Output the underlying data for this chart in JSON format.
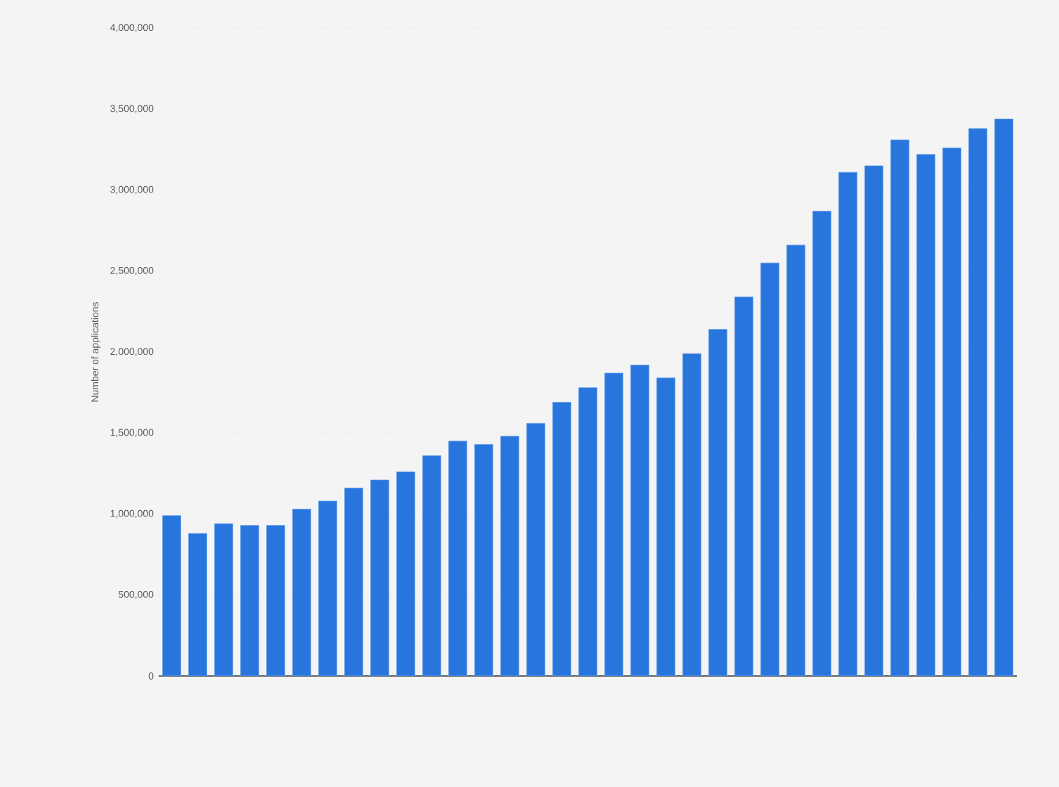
{
  "chart_data": {
    "type": "bar",
    "ylabel": "Number of applications",
    "categories": [
      null,
      null,
      null,
      null,
      null,
      null,
      null,
      null,
      null,
      null,
      null,
      null,
      null,
      null,
      null,
      null,
      null,
      null,
      null,
      null,
      null,
      null,
      null,
      null,
      null,
      null,
      null,
      null,
      null,
      null,
      null,
      null,
      null
    ],
    "values": [
      990000,
      880000,
      940000,
      930000,
      930000,
      1030000,
      1080000,
      1160000,
      1210000,
      1260000,
      1360000,
      1450000,
      1430000,
      1480000,
      1560000,
      1690000,
      1780000,
      1870000,
      1920000,
      1840000,
      1990000,
      2140000,
      2340000,
      2550000,
      2660000,
      2870000,
      3110000,
      3150000,
      3310000,
      3220000,
      3260000,
      3380000,
      3440000
    ],
    "color": "#2876dd",
    "ylim": [
      0,
      4000000
    ],
    "yticks": [
      {
        "value": 0,
        "label": "0"
      },
      {
        "value": 500000,
        "label": "500,000"
      },
      {
        "value": 1000000,
        "label": "1,000,000"
      },
      {
        "value": 1500000,
        "label": "1,500,000"
      },
      {
        "value": 2000000,
        "label": "2,000,000"
      },
      {
        "value": 2500000,
        "label": "2,500,000"
      },
      {
        "value": 3000000,
        "label": "3,000,000"
      },
      {
        "value": 3500000,
        "label": "3,500,000"
      },
      {
        "value": 4000000,
        "label": "4,000,000"
      }
    ],
    "grid": "y"
  }
}
